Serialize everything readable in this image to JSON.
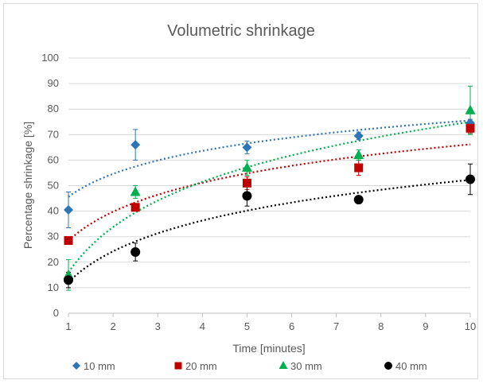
{
  "chart_data": {
    "type": "scatter",
    "title": "Volumetric shrinkage",
    "xlabel": "Time [minutes]",
    "ylabel": "Percentage shrinkage [%]",
    "xlim": [
      1,
      10
    ],
    "ylim": [
      0,
      100
    ],
    "x_ticks": [
      1,
      2,
      3,
      4,
      5,
      6,
      7,
      8,
      9,
      10
    ],
    "y_ticks": [
      0,
      10,
      20,
      30,
      40,
      50,
      60,
      70,
      80,
      90,
      100
    ],
    "grid": "horizontal",
    "legend_position": "bottom",
    "trendline": "logarithmic (dotted)",
    "series": [
      {
        "name": "10 mm",
        "color": "#2e75b6",
        "marker": "diamond",
        "points": [
          {
            "x": 1,
            "y": 40.5,
            "err": 7
          },
          {
            "x": 2.5,
            "y": 66,
            "err": 6
          },
          {
            "x": 5,
            "y": 65,
            "err": 2.5
          },
          {
            "x": 7.5,
            "y": 69.5,
            "err": 1.5
          },
          {
            "x": 10,
            "y": 74.5,
            "err": 1.5
          }
        ],
        "trend": {
          "a": 45.6,
          "b": 13.0
        }
      },
      {
        "name": "20 mm",
        "color": "#c00000",
        "marker": "square",
        "points": [
          {
            "x": 1,
            "y": 28.5,
            "err": 1
          },
          {
            "x": 2.5,
            "y": 41.5,
            "err": 1.5
          },
          {
            "x": 5,
            "y": 51,
            "err": 2.5
          },
          {
            "x": 7.5,
            "y": 57,
            "err": 3
          },
          {
            "x": 10,
            "y": 72.5,
            "err": 2
          }
        ],
        "trend": {
          "a": 28.4,
          "b": 16.4
        }
      },
      {
        "name": "30 mm",
        "color": "#00b050",
        "marker": "triangle",
        "points": [
          {
            "x": 1,
            "y": 15,
            "err": 6
          },
          {
            "x": 2.5,
            "y": 47.5,
            "err": 2.5
          },
          {
            "x": 5,
            "y": 57,
            "err": 3
          },
          {
            "x": 7.5,
            "y": 62,
            "err": 2
          },
          {
            "x": 10,
            "y": 79.5,
            "err": 9.5
          }
        ],
        "trend": {
          "a": 16.0,
          "b": 25.6
        }
      },
      {
        "name": "40 mm",
        "color": "#000000",
        "marker": "circle",
        "points": [
          {
            "x": 1,
            "y": 13,
            "err": 3
          },
          {
            "x": 2.5,
            "y": 24,
            "err": 3.5
          },
          {
            "x": 5,
            "y": 46,
            "err": 4
          },
          {
            "x": 7.5,
            "y": 44.5,
            "err": 1.5
          },
          {
            "x": 10,
            "y": 52.5,
            "err": 6
          }
        ],
        "trend": {
          "a": 12.2,
          "b": 17.4
        }
      }
    ]
  }
}
